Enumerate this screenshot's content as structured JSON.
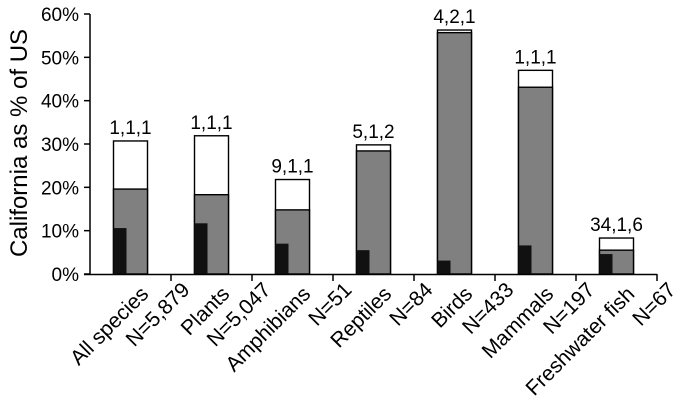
{
  "chart_data": {
    "type": "bar",
    "ylabel": "California as % of US",
    "ylim": [
      0,
      60
    ],
    "yticks": [
      0,
      10,
      20,
      30,
      40,
      50,
      60
    ],
    "tick_suffix": "%",
    "stacking": "overlaid",
    "series": [
      {
        "name": "total (white)",
        "color": "#ffffff"
      },
      {
        "name": "middle (gray)",
        "color": "#808080"
      },
      {
        "name": "inner (black)",
        "color": "#111111"
      }
    ],
    "categories": [
      {
        "name": "All species",
        "n": "N=5,879",
        "total": 30.7,
        "middle": 19.6,
        "inner": 10.6,
        "label": "1,1,1"
      },
      {
        "name": "Plants",
        "n": "N=5,047",
        "total": 31.9,
        "middle": 18.3,
        "inner": 11.7,
        "label": "1,1,1"
      },
      {
        "name": "Amphibians",
        "n": "N=51",
        "total": 21.8,
        "middle": 14.8,
        "inner": 7.0,
        "label": "9,1,1"
      },
      {
        "name": "Reptiles",
        "n": "N=84",
        "total": 29.8,
        "middle": 28.4,
        "inner": 5.5,
        "label": "5,1,2"
      },
      {
        "name": "Birds",
        "n": "N=433",
        "total": 56.3,
        "middle": 55.7,
        "inner": 3.1,
        "label": "4,2,1"
      },
      {
        "name": "Mammals",
        "n": "N=197",
        "total": 47.0,
        "middle": 43.1,
        "inner": 6.6,
        "label": "1,1,1"
      },
      {
        "name": "Freshwater fish",
        "n": "N=67",
        "total": 8.3,
        "middle": 5.5,
        "inner": 4.6,
        "label": "34,1,6"
      }
    ]
  }
}
